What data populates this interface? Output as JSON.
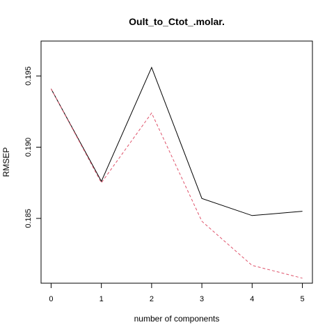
{
  "chart_data": {
    "type": "line",
    "title": "Oult_to_Ctot_.molar.",
    "xlabel": "number of components",
    "ylabel": "RMSEP",
    "x": [
      0,
      1,
      2,
      3,
      4,
      5
    ],
    "xticks": [
      "0",
      "1",
      "2",
      "3",
      "4",
      "5"
    ],
    "yticks": [
      {
        "value": 0.185,
        "label": "0.185"
      },
      {
        "value": 0.19,
        "label": "0.190"
      },
      {
        "value": 0.195,
        "label": "0.195"
      }
    ],
    "xlim": [
      -0.2,
      5.2
    ],
    "ylim": [
      0.18045,
      0.19745
    ],
    "grid": false,
    "series": [
      {
        "values": [
          0.1941,
          0.1876,
          0.1956,
          0.1864,
          0.1852,
          0.1855
        ],
        "color": "#000000",
        "style": "solid"
      },
      {
        "values": [
          0.1941,
          0.1875,
          0.1924,
          0.1848,
          0.1817,
          0.1808
        ],
        "color": "#DF536B",
        "style": "dashed"
      }
    ]
  }
}
